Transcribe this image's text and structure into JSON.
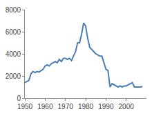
{
  "chart_data": {
    "type": "line",
    "x": [
      1950,
      1951,
      1952,
      1953,
      1954,
      1955,
      1956,
      1957,
      1958,
      1959,
      1960,
      1961,
      1962,
      1963,
      1964,
      1965,
      1966,
      1967,
      1968,
      1969,
      1970,
      1971,
      1972,
      1973,
      1974,
      1975,
      1976,
      1977,
      1978,
      1979,
      1980,
      1981,
      1982,
      1983,
      1984,
      1985,
      1986,
      1987,
      1988,
      1989,
      1990,
      1991,
      1992,
      1993,
      1994,
      1995,
      1996,
      1997,
      1998,
      1999,
      2000,
      2001,
      2002,
      2003,
      2004,
      2005,
      2006,
      2007,
      2008
    ],
    "values": [
      1400,
      1500,
      1600,
      2200,
      2400,
      2300,
      2400,
      2350,
      2500,
      2600,
      2900,
      3000,
      2900,
      3100,
      3200,
      3300,
      3200,
      3500,
      3300,
      3600,
      3600,
      3500,
      3600,
      3400,
      3800,
      4200,
      5000,
      5000,
      5800,
      6800,
      6500,
      5400,
      4600,
      4400,
      4200,
      4000,
      3900,
      3800,
      3800,
      3200,
      2600,
      2500,
      1000,
      1300,
      1200,
      1100,
      1000,
      1100,
      1000,
      1100,
      1100,
      1200,
      1300,
      1400,
      1000,
      1000,
      1000,
      1000,
      1050
    ],
    "color": "#4a7ebb",
    "xlim": [
      1950,
      2010
    ],
    "xticks": [
      1950,
      1960,
      1970,
      1980,
      1990,
      2000
    ],
    "ylim": [
      0,
      8000
    ],
    "yticks": [
      0,
      2000,
      4000,
      6000,
      8000
    ],
    "grid": false
  }
}
